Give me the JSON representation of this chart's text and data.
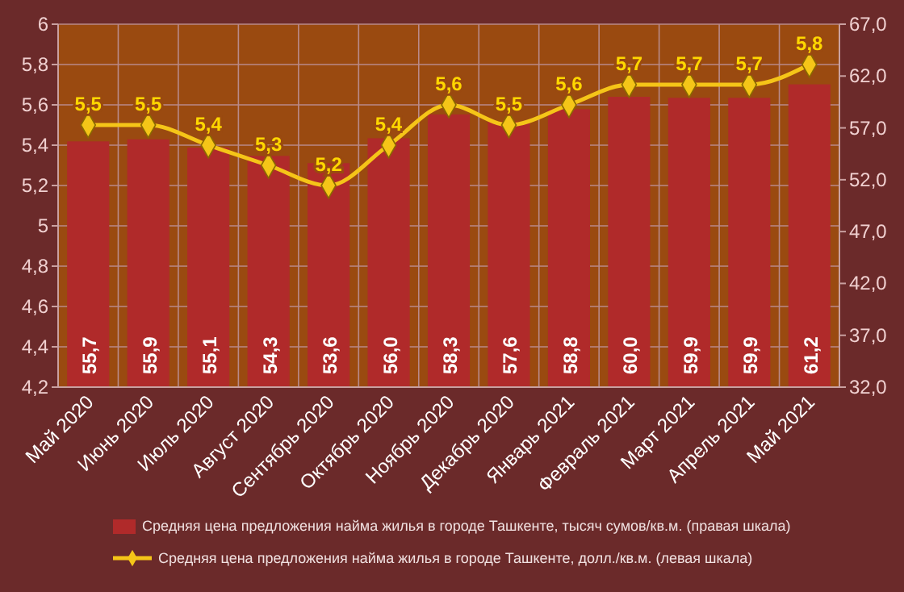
{
  "chart_data": {
    "type": "bar",
    "categories": [
      "Май 2020",
      "Июнь 2020",
      "Июль 2020",
      "Август 2020",
      "Сентябрь 2020",
      "Октябрь 2020",
      "Ноябрь 2020",
      "Декабрь 2020",
      "Январь 2021",
      "Февраль 2021",
      "Март 2021",
      "Апрель 2021",
      "Май 2021"
    ],
    "series": [
      {
        "name": "Средняя цена предложения найма жилья в городе Ташкенте, тысяч сумов/кв.м. (правая шкала)",
        "axis": "y2",
        "color": "#b02a2a",
        "values": [
          55.7,
          55.9,
          55.1,
          54.3,
          53.6,
          56.0,
          58.3,
          57.6,
          58.8,
          60.0,
          59.9,
          59.9,
          61.2
        ],
        "value_labels": [
          "55,7",
          "55,9",
          "55,1",
          "54,3",
          "53,6",
          "56,0",
          "58,3",
          "57,6",
          "58,8",
          "60,0",
          "59,9",
          "59,9",
          "61,2"
        ]
      },
      {
        "name": "Средняя цена предложения найма жилья в городе Ташкенте, долл./кв.м. (левая шкала)",
        "type": "line",
        "axis": "y",
        "color": "#f5c518",
        "marker": "diamond",
        "values": [
          5.5,
          5.5,
          5.4,
          5.3,
          5.2,
          5.4,
          5.6,
          5.5,
          5.6,
          5.7,
          5.7,
          5.7,
          5.8
        ],
        "value_labels": [
          "5,5",
          "5,5",
          "5,4",
          "5,3",
          "5,2",
          "5,4",
          "5,6",
          "5,5",
          "5,6",
          "5,7",
          "5,7",
          "5,7",
          "5,8"
        ]
      }
    ],
    "ylim": [
      4.2,
      6
    ],
    "yticks": [
      {
        "value": 4.2,
        "label": "4,2"
      },
      {
        "value": 4.4,
        "label": "4,4"
      },
      {
        "value": 4.6,
        "label": "4,6"
      },
      {
        "value": 4.8,
        "label": "4,8"
      },
      5,
      {
        "value": 5.2,
        "label": "5,2"
      },
      {
        "value": 5.4,
        "label": "5,4"
      },
      {
        "value": 5.6,
        "label": "5,6"
      },
      {
        "value": 5.8,
        "label": "5,8"
      },
      6
    ],
    "y2lim": [
      32,
      67
    ],
    "y2ticks": [
      {
        "value": 32,
        "label": "32,0"
      },
      {
        "value": 37,
        "label": "37,0"
      },
      {
        "value": 42,
        "label": "42,0"
      },
      {
        "value": 47,
        "label": "47,0"
      },
      {
        "value": 52,
        "label": "52,0"
      },
      {
        "value": 57,
        "label": "57,0"
      },
      {
        "value": 62,
        "label": "62,0"
      },
      {
        "value": 67,
        "label": "67,0"
      }
    ],
    "grid": true,
    "legend": "bottom"
  }
}
